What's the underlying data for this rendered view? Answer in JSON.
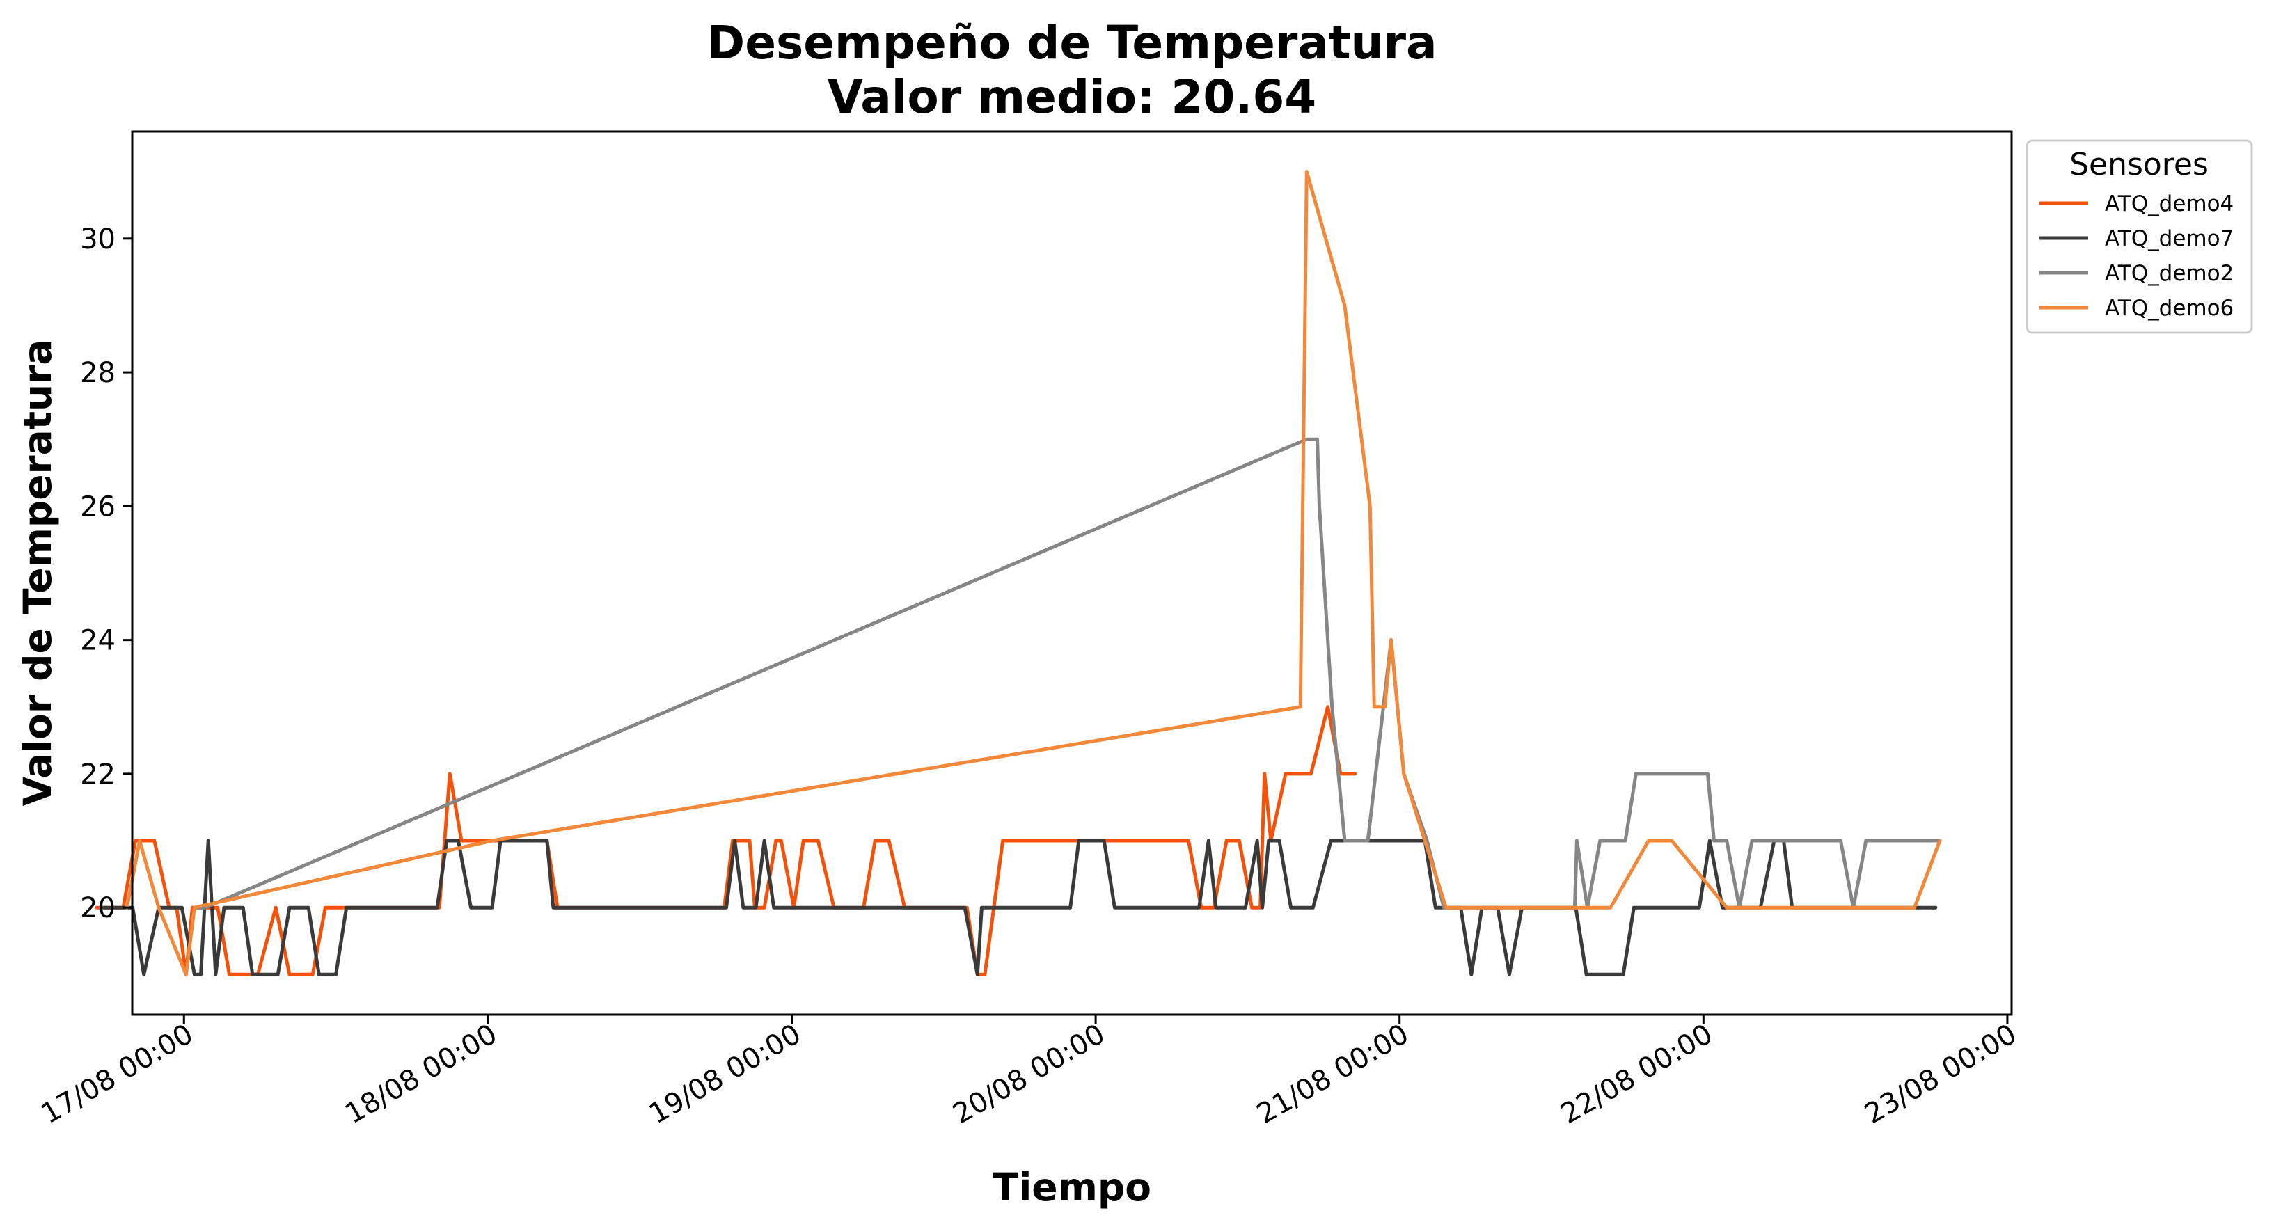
{
  "chart_data": {
    "type": "line",
    "title": "Desempeño de Temperatura",
    "subtitle": "Valor medio: 20.64",
    "xlabel": "Tiempo",
    "ylabel": "Valor de Temperatura",
    "xlim": [
      "2025-08-16T19:55",
      "2025-08-23T00:20"
    ],
    "ylim": [
      18.4,
      31.6
    ],
    "x_ticks": [
      "17/08 00:00",
      "18/08 00:00",
      "19/08 00:00",
      "20/08 00:00",
      "21/08 00:00",
      "22/08 00:00",
      "23/08 00:00"
    ],
    "y_ticks": [
      "20",
      "22",
      "24",
      "26",
      "28",
      "30"
    ],
    "legend_title": "Sensores",
    "legend_position": "outside top-right",
    "grid": false,
    "series": [
      {
        "name": "ATQ_demo4",
        "color": "#F4510B",
        "points": [
          [
            "2025-08-16T17:06",
            20
          ],
          [
            "2025-08-16T19:12",
            20
          ],
          [
            "2025-08-16T20:10",
            21
          ],
          [
            "2025-08-16T21:40",
            21
          ],
          [
            "2025-08-16T22:50",
            20
          ],
          [
            "2025-08-16T23:25",
            20
          ],
          [
            "2025-08-17T00:10",
            19
          ],
          [
            "2025-08-17T00:40",
            20
          ],
          [
            "2025-08-17T01:50",
            20
          ],
          [
            "2025-08-17T02:40",
            20
          ],
          [
            "2025-08-17T03:35",
            19
          ],
          [
            "2025-08-17T05:50",
            19
          ],
          [
            "2025-08-17T07:15",
            20
          ],
          [
            "2025-08-17T08:20",
            19
          ],
          [
            "2025-08-17T10:10",
            19
          ],
          [
            "2025-08-17T11:10",
            20
          ],
          [
            "2025-08-17T19:30",
            20
          ],
          [
            "2025-08-17T20:10",
            20
          ],
          [
            "2025-08-17T21:00",
            22
          ],
          [
            "2025-08-17T21:55",
            21
          ],
          [
            "2025-08-18T01:00",
            21
          ],
          [
            "2025-08-18T04:40",
            21
          ],
          [
            "2025-08-18T05:30",
            20
          ],
          [
            "2025-08-18T18:40",
            20
          ],
          [
            "2025-08-18T19:20",
            21
          ],
          [
            "2025-08-18T20:40",
            21
          ],
          [
            "2025-08-18T21:05",
            20
          ],
          [
            "2025-08-18T21:50",
            20
          ],
          [
            "2025-08-18T22:45",
            21
          ],
          [
            "2025-08-18T23:10",
            21
          ],
          [
            "2025-08-19T00:10",
            20
          ],
          [
            "2025-08-19T00:55",
            21
          ],
          [
            "2025-08-19T02:05",
            21
          ],
          [
            "2025-08-19T03:20",
            20
          ],
          [
            "2025-08-19T05:40",
            20
          ],
          [
            "2025-08-19T06:35",
            21
          ],
          [
            "2025-08-19T07:40",
            21
          ],
          [
            "2025-08-19T08:55",
            20
          ],
          [
            "2025-08-19T13:50",
            20
          ],
          [
            "2025-08-19T14:40",
            19
          ],
          [
            "2025-08-19T15:15",
            19
          ],
          [
            "2025-08-19T16:40",
            21
          ],
          [
            "2025-08-20T07:20",
            21
          ],
          [
            "2025-08-20T08:20",
            20
          ],
          [
            "2025-08-20T09:20",
            20
          ],
          [
            "2025-08-20T10:20",
            21
          ],
          [
            "2025-08-20T11:20",
            21
          ],
          [
            "2025-08-20T12:20",
            20
          ],
          [
            "2025-08-20T13:00",
            20
          ],
          [
            "2025-08-20T13:20",
            22
          ],
          [
            "2025-08-20T13:50",
            21
          ],
          [
            "2025-08-20T15:00",
            22
          ],
          [
            "2025-08-20T17:00",
            22
          ],
          [
            "2025-08-20T18:20",
            23
          ],
          [
            "2025-08-20T19:20",
            22
          ],
          [
            "2025-08-20T20:30",
            22
          ]
        ]
      },
      {
        "name": "ATQ_demo7",
        "color": "#3A3A3A",
        "points": [
          [
            "2025-08-16T17:40",
            20
          ],
          [
            "2025-08-16T19:57",
            20
          ],
          [
            "2025-08-16T20:50",
            19
          ],
          [
            "2025-08-16T22:00",
            20
          ],
          [
            "2025-08-16T23:50",
            20
          ],
          [
            "2025-08-17T00:50",
            19
          ],
          [
            "2025-08-17T01:20",
            19
          ],
          [
            "2025-08-17T01:55",
            21
          ],
          [
            "2025-08-17T02:30",
            19
          ],
          [
            "2025-08-17T03:10",
            20
          ],
          [
            "2025-08-17T04:40",
            20
          ],
          [
            "2025-08-17T05:25",
            19
          ],
          [
            "2025-08-17T07:25",
            19
          ],
          [
            "2025-08-17T08:20",
            20
          ],
          [
            "2025-08-17T09:50",
            20
          ],
          [
            "2025-08-17T10:40",
            19
          ],
          [
            "2025-08-17T12:00",
            19
          ],
          [
            "2025-08-17T12:50",
            20
          ],
          [
            "2025-08-17T20:00",
            20
          ],
          [
            "2025-08-17T20:45",
            21
          ],
          [
            "2025-08-17T21:40",
            21
          ],
          [
            "2025-08-17T22:40",
            20
          ],
          [
            "2025-08-18T00:20",
            20
          ],
          [
            "2025-08-18T01:00",
            21
          ],
          [
            "2025-08-18T04:40",
            21
          ],
          [
            "2025-08-18T05:10",
            20
          ],
          [
            "2025-08-18T18:50",
            20
          ],
          [
            "2025-08-18T19:30",
            21
          ],
          [
            "2025-08-18T20:10",
            20
          ],
          [
            "2025-08-18T21:10",
            20
          ],
          [
            "2025-08-18T21:50",
            21
          ],
          [
            "2025-08-18T22:35",
            20
          ],
          [
            "2025-08-19T13:40",
            20
          ],
          [
            "2025-08-19T14:40",
            19
          ],
          [
            "2025-08-19T15:00",
            20
          ],
          [
            "2025-08-19T22:00",
            20
          ],
          [
            "2025-08-19T22:40",
            21
          ],
          [
            "2025-08-20T00:40",
            21
          ],
          [
            "2025-08-20T01:30",
            20
          ],
          [
            "2025-08-20T08:10",
            20
          ],
          [
            "2025-08-20T08:55",
            21
          ],
          [
            "2025-08-20T09:30",
            20
          ],
          [
            "2025-08-20T11:50",
            20
          ],
          [
            "2025-08-20T12:45",
            21
          ],
          [
            "2025-08-20T13:10",
            20
          ],
          [
            "2025-08-20T13:40",
            21
          ],
          [
            "2025-08-20T14:30",
            21
          ],
          [
            "2025-08-20T15:25",
            20
          ],
          [
            "2025-08-20T17:10",
            20
          ],
          [
            "2025-08-20T18:35",
            21
          ],
          [
            "2025-08-21T02:00",
            21
          ],
          [
            "2025-08-21T02:50",
            20
          ],
          [
            "2025-08-21T04:50",
            20
          ],
          [
            "2025-08-21T05:40",
            19
          ],
          [
            "2025-08-21T06:30",
            20
          ],
          [
            "2025-08-21T07:45",
            20
          ],
          [
            "2025-08-21T08:40",
            19
          ],
          [
            "2025-08-21T09:40",
            20
          ],
          [
            "2025-08-21T13:55",
            20
          ],
          [
            "2025-08-21T14:45",
            19
          ],
          [
            "2025-08-21T17:40",
            19
          ],
          [
            "2025-08-21T18:30",
            20
          ],
          [
            "2025-08-21T23:40",
            20
          ],
          [
            "2025-08-22T00:30",
            21
          ],
          [
            "2025-08-22T01:30",
            20
          ],
          [
            "2025-08-22T04:30",
            20
          ],
          [
            "2025-08-22T05:35",
            21
          ],
          [
            "2025-08-22T06:20",
            21
          ],
          [
            "2025-08-22T07:00",
            20
          ],
          [
            "2025-08-22T17:20",
            20
          ],
          [
            "2025-08-22T18:20",
            20
          ]
        ]
      },
      {
        "name": "ATQ_demo2",
        "color": "#868686",
        "points": [
          [
            "2025-08-17T00:50",
            20
          ],
          [
            "2025-08-17T01:40",
            20
          ],
          [
            "2025-08-20T16:40",
            27
          ],
          [
            "2025-08-20T17:30",
            27
          ],
          [
            "2025-08-20T17:40",
            26
          ],
          [
            "2025-08-20T18:40",
            23
          ],
          [
            "2025-08-20T19:40",
            21
          ],
          [
            "2025-08-20T21:30",
            21
          ],
          [
            "2025-08-20T23:20",
            24
          ],
          [
            "2025-08-21T00:20",
            22
          ],
          [
            "2025-08-21T02:10",
            21
          ],
          [
            "2025-08-21T03:30",
            20
          ],
          [
            "2025-08-21T13:50",
            20
          ],
          [
            "2025-08-21T14:00",
            21
          ],
          [
            "2025-08-21T14:50",
            20
          ],
          [
            "2025-08-21T15:50",
            21
          ],
          [
            "2025-08-21T17:50",
            21
          ],
          [
            "2025-08-21T18:40",
            22
          ],
          [
            "2025-08-22T00:20",
            22
          ],
          [
            "2025-08-22T00:50",
            21
          ],
          [
            "2025-08-22T01:50",
            21
          ],
          [
            "2025-08-22T02:50",
            20
          ],
          [
            "2025-08-22T03:50",
            21
          ],
          [
            "2025-08-22T10:50",
            21
          ],
          [
            "2025-08-22T11:50",
            20
          ],
          [
            "2025-08-22T12:50",
            21
          ],
          [
            "2025-08-22T18:40",
            21
          ]
        ]
      },
      {
        "name": "ATQ_demo6",
        "color": "#F2883A",
        "points": [
          [
            "2025-08-16T19:30",
            20
          ],
          [
            "2025-08-16T20:30",
            21
          ],
          [
            "2025-08-16T22:00",
            20
          ],
          [
            "2025-08-17T00:10",
            19
          ],
          [
            "2025-08-17T00:50",
            20
          ],
          [
            "2025-08-18T00:20",
            21
          ],
          [
            "2025-08-20T16:10",
            23
          ],
          [
            "2025-08-20T16:40",
            31
          ],
          [
            "2025-08-20T19:40",
            29
          ],
          [
            "2025-08-20T21:40",
            26
          ],
          [
            "2025-08-20T22:00",
            23
          ],
          [
            "2025-08-20T22:50",
            23
          ],
          [
            "2025-08-20T23:20",
            24
          ],
          [
            "2025-08-20T23:50",
            23
          ],
          [
            "2025-08-21T00:20",
            22
          ],
          [
            "2025-08-21T03:40",
            20
          ],
          [
            "2025-08-21T16:40",
            20
          ],
          [
            "2025-08-21T19:40",
            21
          ],
          [
            "2025-08-21T21:30",
            21
          ],
          [
            "2025-08-22T01:50",
            20
          ],
          [
            "2025-08-22T16:40",
            20
          ],
          [
            "2025-08-22T18:40",
            21
          ]
        ]
      }
    ]
  }
}
